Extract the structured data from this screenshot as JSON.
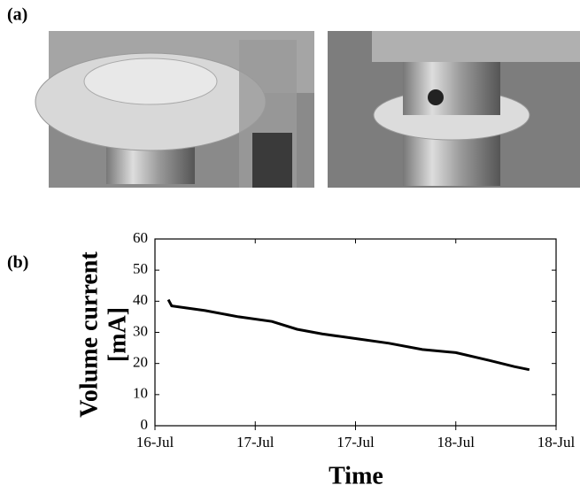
{
  "panel_labels": [
    "(a)",
    "(b)"
  ],
  "chart_data": {
    "type": "line",
    "y_label": [
      "Volume current",
      "[mA]"
    ],
    "x_label": "Time",
    "x": [
      16.08,
      16.1,
      16.3,
      16.5,
      16.7,
      16.85,
      17.0,
      17.2,
      17.4,
      17.6,
      17.8,
      18.0,
      18.15,
      18.24
    ],
    "series": [
      {
        "color": "#000000",
        "values": [
          40.5,
          38.5,
          37,
          35,
          33.5,
          31,
          29.5,
          28,
          26.5,
          24.5,
          23.5,
          21,
          19,
          18
        ]
      }
    ],
    "xlim": [
      16,
      18.4
    ],
    "xticks": [
      {
        "value": 16,
        "label": "16-Jul"
      },
      {
        "value": 16.6,
        "label": "17-Jul"
      },
      {
        "value": 17.2,
        "label": "17-Jul"
      },
      {
        "value": 17.8,
        "label": "18-Jul"
      },
      {
        "value": 18.4,
        "label": "18-Jul"
      }
    ],
    "ylim": [
      0,
      60
    ],
    "yticks": [
      0,
      10,
      20,
      30,
      40,
      50,
      60
    ],
    "grid": false
  }
}
